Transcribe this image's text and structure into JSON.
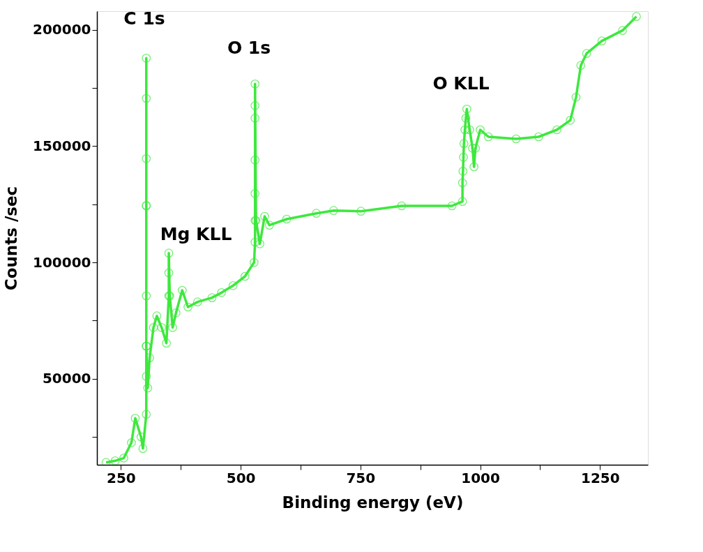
{
  "chart_data": {
    "type": "line",
    "xlabel": "Binding energy  (eV)",
    "ylabel": "Counts /sec",
    "x": [
      219,
      238,
      256,
      272,
      280,
      292,
      296,
      303,
      303,
      303,
      303,
      303,
      303,
      303,
      303,
      303,
      303,
      306,
      310,
      318,
      325,
      335,
      345,
      350,
      350,
      350,
      352,
      358,
      365,
      378,
      390,
      410,
      440,
      460,
      484,
      509,
      528,
      530,
      530,
      530,
      530,
      530,
      530,
      530,
      532,
      540,
      550,
      560,
      596,
      658,
      694,
      751,
      836,
      941,
      963,
      963,
      964,
      965,
      966,
      968,
      970,
      972,
      978,
      984,
      987,
      990,
      1000,
      1017,
      1075,
      1122,
      1160,
      1188,
      1200,
      1210,
      1222,
      1254,
      1297,
      1326
    ],
    "series": [
      {
        "color": "#3de83d",
        "values": [
          14000,
          14700,
          15900,
          22500,
          33000,
          25000,
          20000,
          34700,
          51000,
          64000,
          85600,
          124400,
          144600,
          170500,
          187800,
          124400,
          64000,
          46000,
          59000,
          72000,
          77000,
          72000,
          65300,
          85600,
          95500,
          104000,
          85600,
          72000,
          78300,
          88000,
          80800,
          83000,
          84800,
          87000,
          90000,
          94000,
          100000,
          108700,
          118000,
          129600,
          144000,
          162000,
          167400,
          176700,
          118000,
          108000,
          119800,
          116000,
          118600,
          121100,
          122300,
          122000,
          124300,
          124300,
          126200,
          134200,
          139200,
          145200,
          151100,
          157000,
          162000,
          165900,
          157000,
          149100,
          141100,
          149100,
          157000,
          154000,
          153100,
          154000,
          157000,
          161100,
          171000,
          184700,
          189800,
          195200,
          199700,
          205700
        ]
      }
    ],
    "marker": "circle",
    "grid": false,
    "legend": false,
    "xlim": [
      200,
      1350
    ],
    "xticks": [
      250,
      {
        "value": 375,
        "label": null
      },
      500,
      {
        "value": 625,
        "label": null
      },
      750,
      {
        "value": 875,
        "label": null
      },
      1000,
      {
        "value": 1125,
        "label": null
      },
      1250
    ],
    "ylim": [
      13000,
      208000
    ],
    "yticks": [
      {
        "value": 25000,
        "label": null
      },
      50000,
      {
        "value": 75000,
        "label": null
      },
      100000,
      {
        "value": 125000,
        "label": null
      },
      150000,
      {
        "value": 175000,
        "label": null
      },
      200000
    ],
    "annotations": [
      "C 1s",
      "O 1s",
      "Mg KLL",
      "O KLL"
    ]
  }
}
